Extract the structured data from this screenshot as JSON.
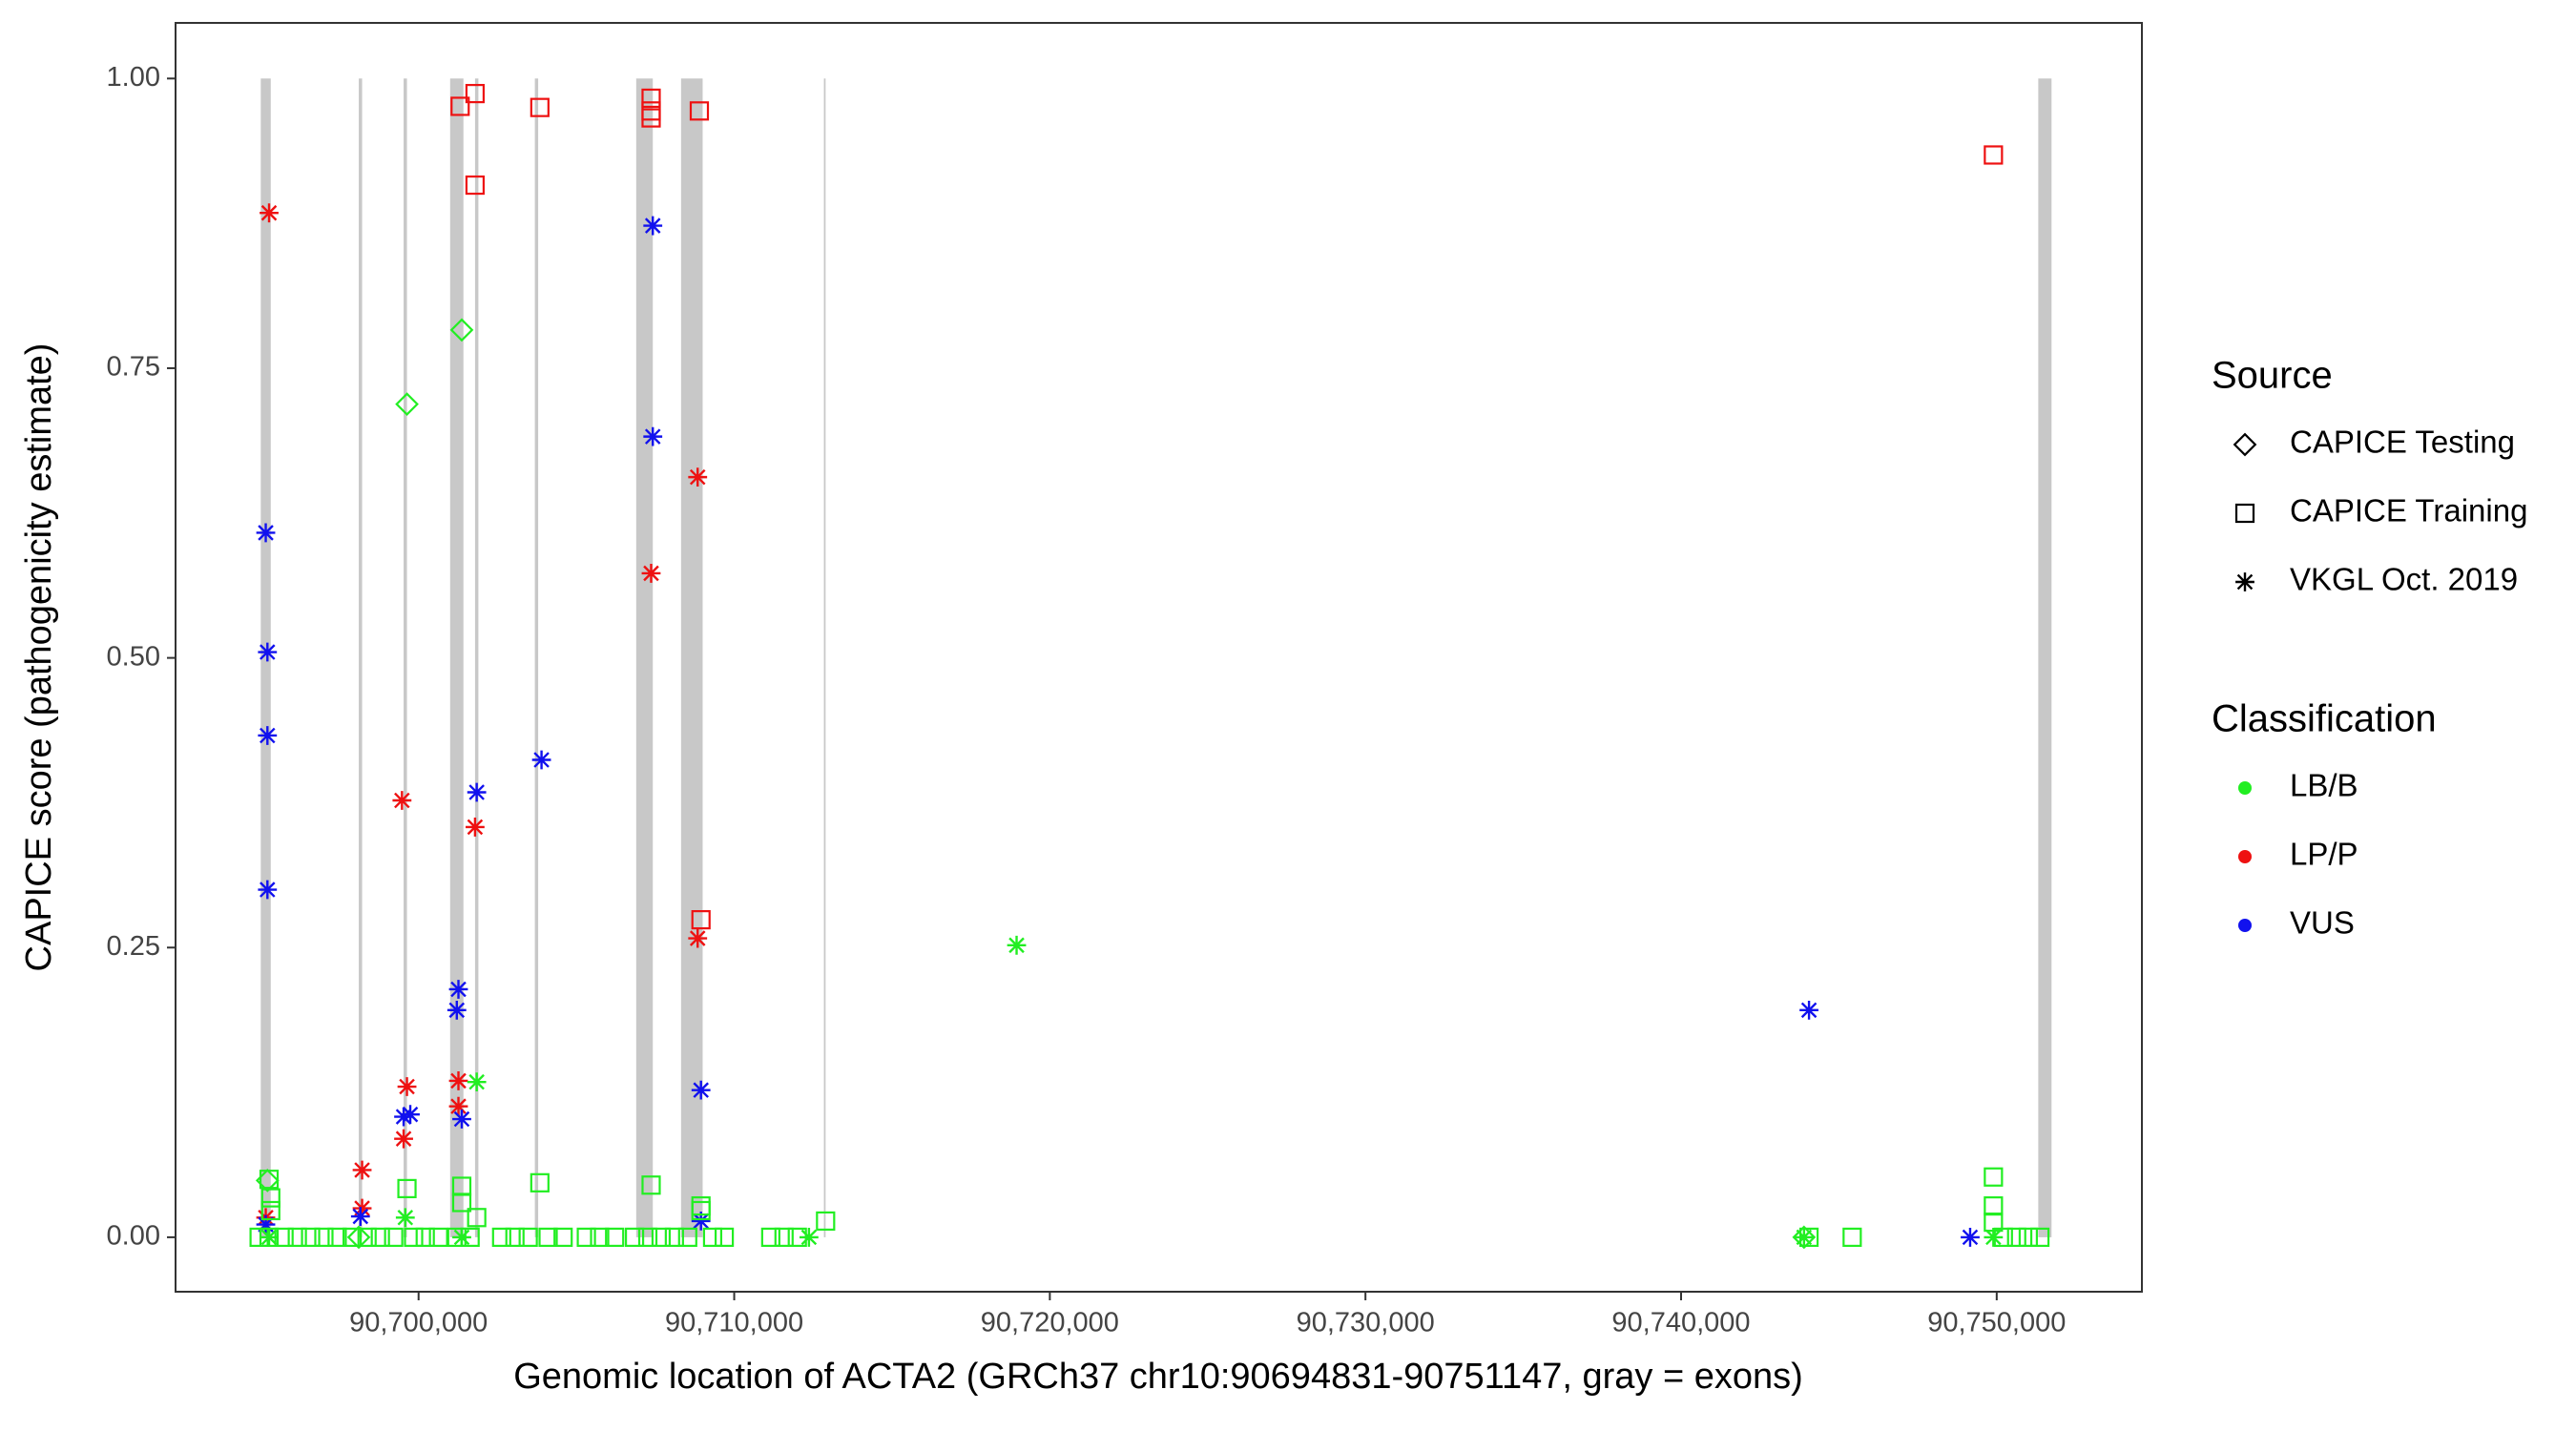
{
  "chart_data": {
    "type": "scatter",
    "x_label": "Genomic location of ACTA2 (GRCh37 chr10:90694831-90751147, gray = exons)",
    "y_label": "CAPICE score (pathogenicity estimate)",
    "xlim": [
      90692300,
      90754600
    ],
    "ylim": [
      -0.047,
      1.048
    ],
    "xticks": [
      {
        "value": 90700000,
        "label": "90,700,000"
      },
      {
        "value": 90710000,
        "label": "90,710,000"
      },
      {
        "value": 90720000,
        "label": "90,720,000"
      },
      {
        "value": 90730000,
        "label": "90,730,000"
      },
      {
        "value": 90740000,
        "label": "90,740,000"
      },
      {
        "value": 90750000,
        "label": "90,750,000"
      }
    ],
    "yticks": [
      {
        "value": 0,
        "label": "0.00"
      },
      {
        "value": 0.25,
        "label": "0.25"
      },
      {
        "value": 0.5,
        "label": "0.50"
      },
      {
        "value": 0.75,
        "label": "0.75"
      },
      {
        "value": 1,
        "label": "1.00"
      }
    ],
    "grid": false,
    "exon_color": "#c8c8c8",
    "exons": [
      [
        90695000,
        90695316
      ],
      [
        90698105,
        90698211
      ],
      [
        90699526,
        90699632
      ],
      [
        90701000,
        90701421
      ],
      [
        90701789,
        90701895
      ],
      [
        90703684,
        90703789
      ],
      [
        90706895,
        90707421
      ],
      [
        90708316,
        90709000
      ],
      [
        90712842,
        90712895
      ],
      [
        90751316,
        90751737
      ]
    ],
    "legends": [
      {
        "title": "Source",
        "entries": [
          {
            "name": "CAPICE Testing",
            "shape": "diamond"
          },
          {
            "name": "CAPICE Training",
            "shape": "square"
          },
          {
            "name": "VKGL Oct. 2019",
            "shape": "star"
          }
        ]
      },
      {
        "title": "Classification",
        "entries": [
          {
            "name": "LB/B",
            "color": "#22ee22"
          },
          {
            "name": "LP/P",
            "color": "#ee1111"
          },
          {
            "name": "VUS",
            "color": "#1111ee"
          }
        ]
      }
    ],
    "series": [
      {
        "source": 2,
        "classification": 1,
        "x": [
          90695263,
          90695158,
          90699474,
          90699632,
          90699526,
          90698211,
          90698211,
          90701263,
          90701263,
          90701789,
          90707368,
          90708842,
          90708842
        ],
        "values": [
          0.884,
          0.017,
          0.377,
          0.13,
          0.085,
          0.058,
          0.025,
          0.135,
          0.113,
          0.354,
          0.573,
          0.656,
          0.258
        ]
      },
      {
        "source": 2,
        "classification": 2,
        "x": [
          90695158,
          90695211,
          90695211,
          90695211,
          90695158,
          90698158,
          90699526,
          90699737,
          90701263,
          90701211,
          90701368,
          90701842,
          90703895,
          90707421,
          90707421,
          90708947,
          90708947,
          90744053,
          90749158
        ],
        "values": [
          0.608,
          0.505,
          0.433,
          0.3,
          0.011,
          0.018,
          0.104,
          0.106,
          0.214,
          0.196,
          0.102,
          0.384,
          0.412,
          0.873,
          0.691,
          0.127,
          0.014,
          0.196,
          0
        ]
      },
      {
        "source": 2,
        "classification": 0,
        "x": [
          90699579,
          90701842,
          90718947,
          90712368,
          90743895,
          90749895,
          90695263,
          90701368
        ],
        "values": [
          0.017,
          0.134,
          0.252,
          0,
          0,
          0,
          0,
          0
        ]
      },
      {
        "source": 0,
        "classification": 0,
        "x": [
          90699632,
          90701368,
          90695211,
          90743895,
          90698105
        ],
        "values": [
          0.719,
          0.783,
          0.049,
          0,
          0
        ]
      },
      {
        "source": 1,
        "classification": 1,
        "x": [
          90701316,
          90701789,
          90701789,
          90703842,
          90707368,
          90707368,
          90707368,
          90708895,
          90708947,
          90749895
        ],
        "values": [
          0.976,
          0.987,
          0.908,
          0.975,
          0.983,
          0.972,
          0.966,
          0.972,
          0.274,
          0.934
        ]
      },
      {
        "source": 1,
        "classification": 0,
        "x": [
          90695263,
          90695316,
          90695316,
          90699632,
          90701368,
          90701368,
          90701842,
          90703842,
          90707368,
          90708947,
          90708947,
          90749895,
          90749895,
          90749895,
          90712895,
          90694948,
          90695263,
          90695737,
          90696158,
          90696579,
          90697000,
          90697421,
          90697895,
          90698368,
          90698789,
          90699211,
          90699842,
          90700211,
          90700632,
          90701211,
          90701632,
          90702632,
          90703053,
          90703474,
          90704105,
          90704579,
          90705316,
          90705737,
          90706211,
          90706842,
          90707263,
          90707684,
          90708105,
          90708526,
          90709316,
          90709684,
          90711158,
          90711579,
          90712000,
          90744053,
          90745421,
          90750211,
          90750632,
          90751000,
          90751368
        ],
        "values": [
          0.05,
          0.034,
          0.023,
          0.042,
          0.044,
          0.03,
          0.017,
          0.047,
          0.045,
          0.027,
          0.023,
          0.052,
          0.027,
          0.013,
          0.014,
          0,
          0,
          0,
          0,
          0,
          0,
          0,
          0,
          0,
          0,
          0,
          0,
          0,
          0,
          0,
          0,
          0,
          0,
          0,
          0,
          0,
          0,
          0,
          0,
          0,
          0,
          0,
          0,
          0,
          0,
          0,
          0,
          0,
          0,
          0,
          0,
          0,
          0,
          0,
          0
        ]
      }
    ]
  }
}
